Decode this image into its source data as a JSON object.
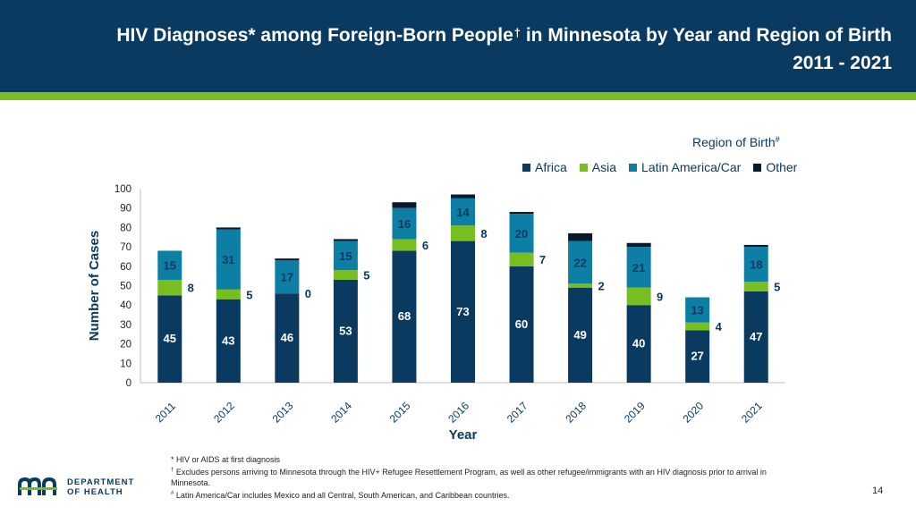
{
  "title": {
    "line1_prefix": "HIV Diagnoses* among Foreign-Born People",
    "line1_dagger": "†",
    "line1_suffix": " in Minnesota by Year and Region of Birth",
    "line2": "2011 - 2021"
  },
  "legend": {
    "title": "Region of Birth",
    "title_mark": "#",
    "items": [
      {
        "label": "Africa",
        "color": "#0b3a61"
      },
      {
        "label": "Asia",
        "color": "#78be20"
      },
      {
        "label": "Latin America/Car",
        "color": "#0d7fa5"
      },
      {
        "label": "Other",
        "color": "#0a1a2e"
      }
    ]
  },
  "chart_data": {
    "type": "bar",
    "stacked": true,
    "title": "HIV Diagnoses* among Foreign-Born People† in Minnesota by Year and Region of Birth 2011 - 2021",
    "xlabel": "Year",
    "ylabel": "Number of Cases",
    "ylim": [
      0,
      100
    ],
    "yticks": [
      0,
      10,
      20,
      30,
      40,
      50,
      60,
      70,
      80,
      90,
      100
    ],
    "categories": [
      "2011",
      "2012",
      "2013",
      "2014",
      "2015",
      "2016",
      "2017",
      "2018",
      "2019",
      "2020",
      "2021"
    ],
    "series": [
      {
        "name": "Africa",
        "color": "#0b3a61",
        "values": [
          45,
          43,
          46,
          53,
          68,
          73,
          60,
          49,
          40,
          27,
          47
        ]
      },
      {
        "name": "Asia",
        "color": "#78be20",
        "values": [
          8,
          5,
          0,
          5,
          6,
          8,
          7,
          2,
          9,
          4,
          5
        ]
      },
      {
        "name": "Latin America/Car",
        "color": "#0d7fa5",
        "values": [
          15,
          31,
          17,
          15,
          16,
          14,
          20,
          22,
          21,
          13,
          18
        ]
      },
      {
        "name": "Other",
        "color": "#0a1a2e",
        "values": [
          0,
          1,
          1,
          1,
          3,
          2,
          1,
          4,
          2,
          0,
          1
        ]
      }
    ],
    "legend_position": "top-right"
  },
  "footnotes": {
    "star": "* HIV or AIDS at first diagnosis",
    "dagger_mark": "†",
    "dagger_text": " Excludes persons arriving to Minnesota through the HIV+ Refugee Resettlement Program, as well as other refugee/immigrants with an HIV diagnosis prior to arrival in",
    "dagger_text_2": "Minnesota.",
    "hash_mark": "#",
    "hash_text": " Latin America/Car includes Mexico and all Central, South American, and Caribbean countries."
  },
  "logo": {
    "line1": "DEPARTMENT",
    "line2": "OF HEALTH"
  },
  "page_number": "14"
}
